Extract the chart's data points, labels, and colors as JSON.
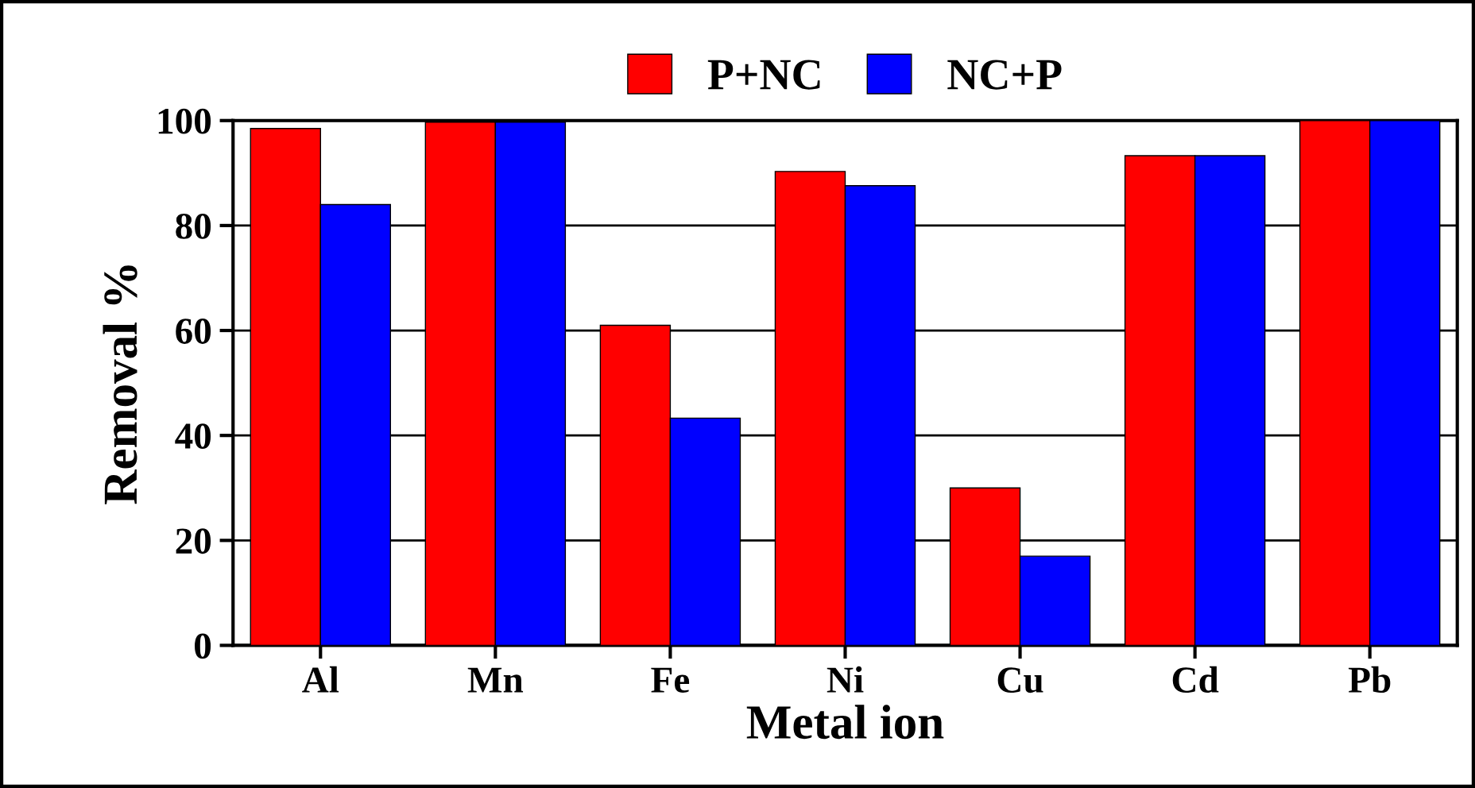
{
  "chart_data": {
    "type": "bar",
    "xlabel": "Metal ion",
    "ylabel": "Removal %",
    "categories": [
      "Al",
      "Mn",
      "Fe",
      "Ni",
      "Cu",
      "Cd",
      "Pb"
    ],
    "series": [
      {
        "name": "P+NC",
        "color": "#ff0000",
        "values": [
          98.5,
          99.7,
          61,
          90.3,
          30,
          93.3,
          100
        ]
      },
      {
        "name": "NC+P",
        "color": "#0000ff",
        "values": [
          84,
          99.7,
          43.3,
          87.6,
          17,
          93.3,
          100
        ]
      }
    ],
    "ylim": [
      0,
      100
    ],
    "yticks": [
      0,
      20,
      40,
      60,
      80,
      100
    ],
    "grid": "y",
    "legend": "top"
  }
}
